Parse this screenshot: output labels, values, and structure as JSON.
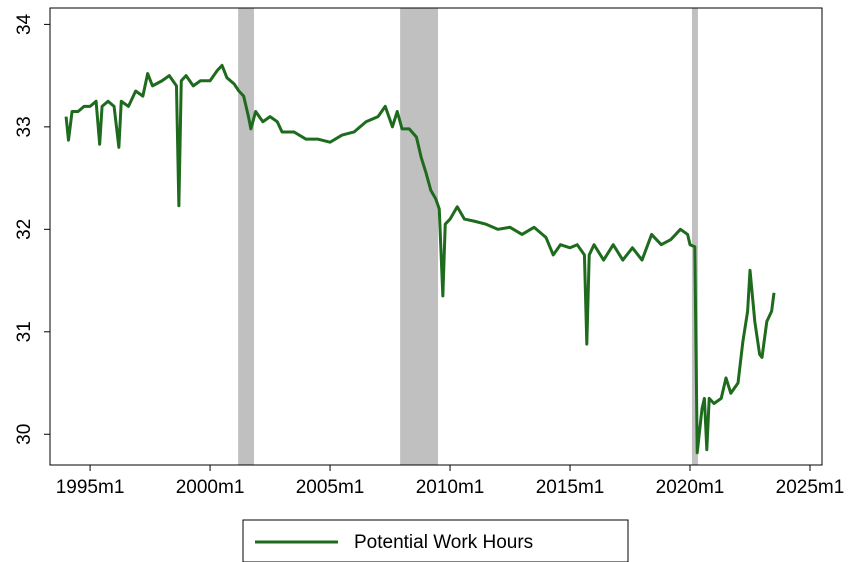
{
  "chart_data": {
    "type": "line",
    "x": [
      1994.0,
      1994.1,
      1994.25,
      1994.5,
      1994.75,
      1995.0,
      1995.25,
      1995.4,
      1995.5,
      1995.75,
      1996.0,
      1996.2,
      1996.3,
      1996.6,
      1996.9,
      1997.2,
      1997.4,
      1997.6,
      1998.0,
      1998.3,
      1998.6,
      1998.7,
      1998.8,
      1999.0,
      1999.3,
      1999.6,
      2000.0,
      2000.3,
      2000.5,
      2000.7,
      2001.0,
      2001.2,
      2001.4,
      2001.6,
      2001.7,
      2001.9,
      2002.2,
      2002.5,
      2002.8,
      2003.0,
      2003.5,
      2004.0,
      2004.5,
      2005.0,
      2005.5,
      2006.0,
      2006.5,
      2007.0,
      2007.3,
      2007.6,
      2007.8,
      2008.0,
      2008.3,
      2008.6,
      2008.8,
      2009.0,
      2009.2,
      2009.4,
      2009.55,
      2009.7,
      2009.8,
      2010.0,
      2010.3,
      2010.6,
      2011.0,
      2011.5,
      2012.0,
      2012.5,
      2013.0,
      2013.5,
      2014.0,
      2014.3,
      2014.6,
      2015.0,
      2015.3,
      2015.6,
      2015.7,
      2015.8,
      2016.0,
      2016.4,
      2016.8,
      2017.2,
      2017.6,
      2018.0,
      2018.4,
      2018.8,
      2019.2,
      2019.6,
      2019.9,
      2020.0,
      2020.2,
      2020.3,
      2020.5,
      2020.6,
      2020.7,
      2020.8,
      2021.0,
      2021.3,
      2021.5,
      2021.7,
      2022.0,
      2022.2,
      2022.4,
      2022.5,
      2022.7,
      2022.9,
      2023.0,
      2023.2,
      2023.4,
      2023.5
    ],
    "series": [
      {
        "name": "Potential Work Hours",
        "color": "#1e6b1e",
        "values": [
          33.1,
          32.87,
          33.15,
          33.15,
          33.2,
          33.2,
          33.25,
          32.83,
          33.2,
          33.25,
          33.2,
          32.8,
          33.25,
          33.2,
          33.35,
          33.3,
          33.52,
          33.4,
          33.45,
          33.5,
          33.4,
          32.23,
          33.45,
          33.5,
          33.4,
          33.45,
          33.45,
          33.55,
          33.6,
          33.48,
          33.42,
          33.35,
          33.3,
          33.1,
          32.98,
          33.15,
          33.05,
          33.1,
          33.05,
          32.95,
          32.95,
          32.88,
          32.88,
          32.85,
          32.92,
          32.95,
          33.05,
          33.1,
          33.2,
          33.0,
          33.15,
          32.98,
          32.98,
          32.9,
          32.7,
          32.55,
          32.38,
          32.3,
          32.2,
          31.35,
          32.05,
          32.1,
          32.22,
          32.1,
          32.08,
          32.05,
          32.0,
          32.02,
          31.95,
          32.02,
          31.92,
          31.75,
          31.85,
          31.82,
          31.85,
          31.75,
          30.88,
          31.75,
          31.85,
          31.7,
          31.85,
          31.7,
          31.82,
          31.7,
          31.95,
          31.85,
          31.9,
          32.0,
          31.95,
          31.85,
          31.83,
          29.82,
          30.25,
          30.35,
          29.85,
          30.35,
          30.3,
          30.35,
          30.55,
          30.4,
          30.5,
          30.9,
          31.2,
          31.6,
          31.1,
          30.78,
          30.75,
          31.1,
          31.2,
          31.38
        ]
      }
    ],
    "recessions": [
      [
        2001.17,
        2001.83
      ],
      [
        2007.92,
        2009.5
      ],
      [
        2020.08,
        2020.33
      ]
    ],
    "recession_color": "#c0c0c0",
    "xlim": [
      1993.33,
      2025.5
    ],
    "ylim": [
      29.7,
      34.16
    ],
    "xticks": [
      {
        "value": 1995,
        "label": "1995m1"
      },
      {
        "value": 2000,
        "label": "2000m1"
      },
      {
        "value": 2005,
        "label": "2005m1"
      },
      {
        "value": 2010,
        "label": "2010m1"
      },
      {
        "value": 2015,
        "label": "2015m1"
      },
      {
        "value": 2020,
        "label": "2020m1"
      },
      {
        "value": 2025,
        "label": "2025m1"
      }
    ],
    "yticks": [
      30,
      31,
      32,
      33,
      34
    ],
    "grid": false
  }
}
